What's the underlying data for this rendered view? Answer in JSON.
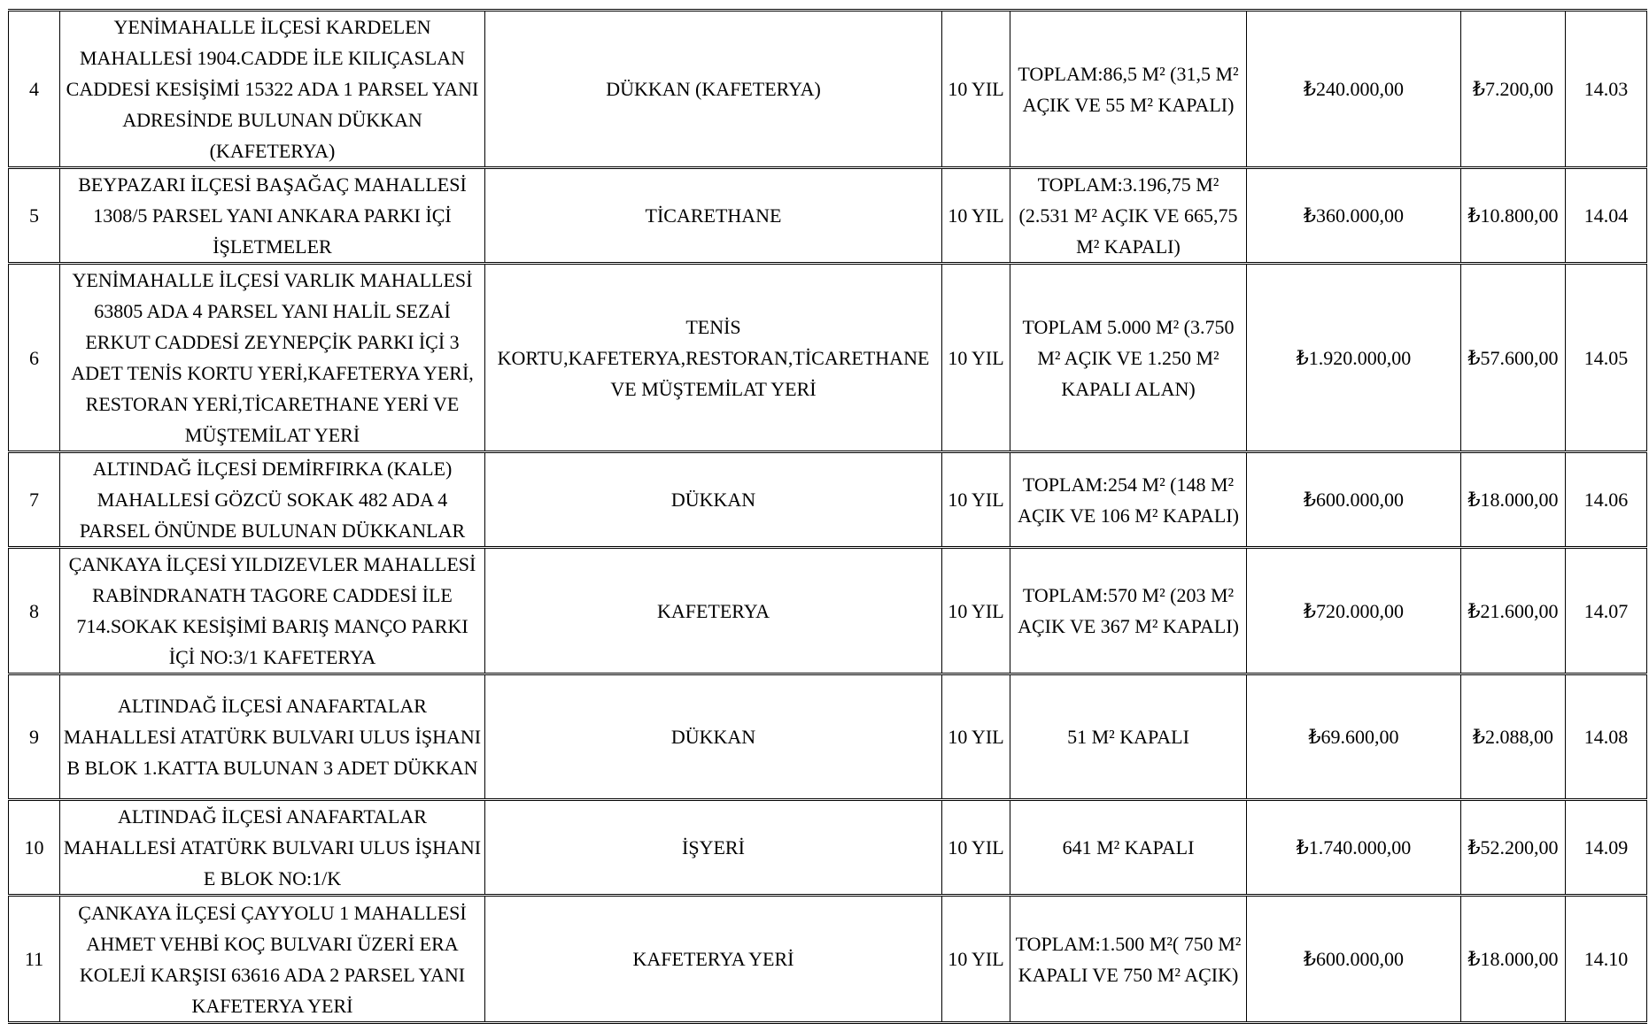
{
  "rows": [
    {
      "no": "4",
      "address": "YENİMAHALLE İLÇESİ KARDELEN MAHALLESİ 1904.CADDE İLE KILIÇASLAN CADDESİ KESİŞİMİ 15322 ADA 1 PARSEL YANI ADRESİNDE BULUNAN DÜKKAN (KAFETERYA)",
      "use": "DÜKKAN (KAFETERYA)",
      "term": "10 YIL",
      "area": "TOPLAM:86,5 M² (31,5 M² AÇIK VE 55 M² KAPALI)",
      "value": "₺240.000,00",
      "deposit": "₺7.200,00",
      "item": "14.03"
    },
    {
      "no": "5",
      "address": "BEYPAZARI İLÇESİ BAŞAĞAÇ MAHALLESİ 1308/5 PARSEL YANI ANKARA PARKI İÇİ İŞLETMELER",
      "use": "TİCARETHANE",
      "term": "10 YIL",
      "area": "TOPLAM:3.196,75 M² (2.531 M² AÇIK VE 665,75 M² KAPALI)",
      "value": "₺360.000,00",
      "deposit": "₺10.800,00",
      "item": "14.04"
    },
    {
      "no": "6",
      "address": "YENİMAHALLE İLÇESİ VARLIK MAHALLESİ 63805 ADA 4 PARSEL YANI HALİL SEZAİ ERKUT CADDESİ ZEYNEPÇİK PARKI İÇİ 3 ADET TENİS KORTU YERİ,KAFETERYA YERİ, RESTORAN YERİ,TİCARETHANE YERİ VE MÜŞTEMİLAT YERİ",
      "use": "TENİS KORTU,KAFETERYA,RESTORAN,TİCARETHANE VE MÜŞTEMİLAT YERİ",
      "term": "10 YIL",
      "area": "TOPLAM 5.000 M² (3.750 M² AÇIK VE 1.250 M² KAPALI ALAN)",
      "value": "₺1.920.000,00",
      "deposit": "₺57.600,00",
      "item": "14.05"
    },
    {
      "no": "7",
      "address": "ALTINDAĞ İLÇESİ DEMİRFIRKA (KALE) MAHALLESİ GÖZCÜ SOKAK 482 ADA 4 PARSEL ÖNÜNDE BULUNAN DÜKKANLAR",
      "use": "DÜKKAN",
      "term": "10 YIL",
      "area": "TOPLAM:254 M² (148 M² AÇIK VE 106 M² KAPALI)",
      "value": "₺600.000,00",
      "deposit": "₺18.000,00",
      "item": "14.06"
    },
    {
      "no": "8",
      "address": "ÇANKAYA İLÇESİ YILDIZEVLER MAHALLESİ RABİNDRANATH TAGORE CADDESİ İLE 714.SOKAK KESİŞİMİ BARIŞ MANÇO PARKI İÇİ NO:3/1 KAFETERYA",
      "use": "KAFETERYA",
      "term": "10 YIL",
      "area": "TOPLAM:570 M² (203 M² AÇIK VE 367 M² KAPALI)",
      "value": "₺720.000,00",
      "deposit": "₺21.600,00",
      "item": "14.07"
    },
    {
      "no": "9",
      "address": "ALTINDAĞ İLÇESİ ANAFARTALAR MAHALLESİ ATATÜRK BULVARI ULUS İŞHANI B BLOK 1.KATTA BULUNAN 3 ADET DÜKKAN",
      "use": "DÜKKAN",
      "term": "10 YIL",
      "area": "51 M² KAPALI",
      "value": "₺69.600,00",
      "deposit": "₺2.088,00",
      "item": "14.08"
    },
    {
      "no": "10",
      "address": "ALTINDAĞ İLÇESİ ANAFARTALAR MAHALLESİ ATATÜRK BULVARI ULUS İŞHANI E BLOK NO:1/K",
      "use": "İŞYERİ",
      "term": "10 YIL",
      "area": "641 M² KAPALI",
      "value": "₺1.740.000,00",
      "deposit": "₺52.200,00",
      "item": "14.09"
    },
    {
      "no": "11",
      "address": "ÇANKAYA İLÇESİ ÇAYYOLU 1 MAHALLESİ AHMET VEHBİ KOÇ BULVARI ÜZERİ ERA KOLEJİ KARŞISI 63616 ADA 2 PARSEL YANI KAFETERYA YERİ",
      "use": "KAFETERYA YERİ",
      "term": "10 YIL",
      "area": "TOPLAM:1.500 M²( 750 M² KAPALI VE 750 M² AÇIK)",
      "value": "₺600.000,00",
      "deposit": "₺18.000,00",
      "item": "14.10"
    }
  ]
}
